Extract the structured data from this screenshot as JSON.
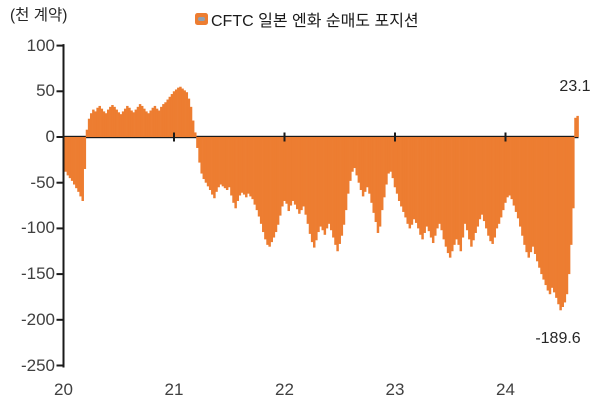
{
  "figure": {
    "y_axis_title": "(천 계약)",
    "legend_label": "CFTC 일본 엔화 순매도 포지션"
  },
  "annotations": {
    "last_value_label": "23.1",
    "min_value_label": "-189.6"
  },
  "chart_data": {
    "type": "bar",
    "title": "",
    "legend": "CFTC 일본 엔화 순매도 포지션",
    "legend_position": "top",
    "ylabel": "(천 계약)",
    "xlabel": "",
    "unit": "thousand contracts",
    "frequency": "weekly",
    "x_start_year": 2020,
    "x_tick_labels": [
      "20",
      "21",
      "22",
      "23",
      "24"
    ],
    "y_ticks": [
      100,
      50,
      0,
      -50,
      -100,
      -150,
      -200,
      -250
    ],
    "ylim": [
      -250,
      100
    ],
    "grid": false,
    "bar_color": "#ED7D31",
    "axis_color": "#1a1a1a",
    "tick_text_color": "#404040",
    "legend_marker_dash_color": "#8fa0b2",
    "last_value": 23.1,
    "min_value": -189.6,
    "values": [
      -38,
      -42,
      -45,
      -48,
      -52,
      -56,
      -60,
      -65,
      -70,
      -35,
      8,
      20,
      26,
      30,
      28,
      32,
      34,
      31,
      28,
      26,
      30,
      33,
      35,
      33,
      30,
      27,
      25,
      28,
      31,
      34,
      32,
      29,
      27,
      30,
      33,
      36,
      34,
      31,
      28,
      26,
      29,
      32,
      34,
      31,
      29,
      33,
      36,
      38,
      41,
      44,
      47,
      50,
      52,
      54,
      55,
      53,
      51,
      49,
      42,
      33,
      18,
      5,
      -12,
      -28,
      -40,
      -46,
      -50,
      -54,
      -58,
      -63,
      -67,
      -60,
      -55,
      -52,
      -54,
      -56,
      -58,
      -55,
      -64,
      -72,
      -78,
      -70,
      -64,
      -61,
      -63,
      -66,
      -62,
      -65,
      -68,
      -74,
      -80,
      -87,
      -95,
      -104,
      -112,
      -118,
      -120,
      -115,
      -110,
      -104,
      -96,
      -86,
      -76,
      -70,
      -73,
      -81,
      -75,
      -70,
      -74,
      -79,
      -84,
      -80,
      -76,
      -85,
      -95,
      -106,
      -115,
      -121,
      -113,
      -104,
      -98,
      -102,
      -107,
      -100,
      -95,
      -102,
      -110,
      -118,
      -125,
      -117,
      -108,
      -96,
      -80,
      -62,
      -48,
      -38,
      -34,
      -42,
      -50,
      -58,
      -65,
      -60,
      -55,
      -62,
      -72,
      -83,
      -93,
      -105,
      -98,
      -80,
      -66,
      -52,
      -40,
      -38,
      -45,
      -55,
      -62,
      -70,
      -76,
      -82,
      -88,
      -95,
      -100,
      -96,
      -90,
      -94,
      -100,
      -107,
      -112,
      -105,
      -98,
      -103,
      -110,
      -116,
      -108,
      -100,
      -95,
      -102,
      -112,
      -120,
      -127,
      -132,
      -125,
      -118,
      -112,
      -118,
      -125,
      -110,
      -95,
      -102,
      -112,
      -120,
      -113,
      -105,
      -98,
      -90,
      -85,
      -92,
      -100,
      -108,
      -114,
      -117,
      -110,
      -100,
      -95,
      -88,
      -80,
      -72,
      -66,
      -64,
      -68,
      -75,
      -82,
      -89,
      -98,
      -108,
      -118,
      -126,
      -132,
      -126,
      -120,
      -128,
      -136,
      -143,
      -150,
      -156,
      -162,
      -168,
      -172,
      -165,
      -170,
      -176,
      -183,
      -189.6,
      -186,
      -181,
      -172,
      -150,
      -118,
      -78,
      21,
      23.1
    ]
  }
}
